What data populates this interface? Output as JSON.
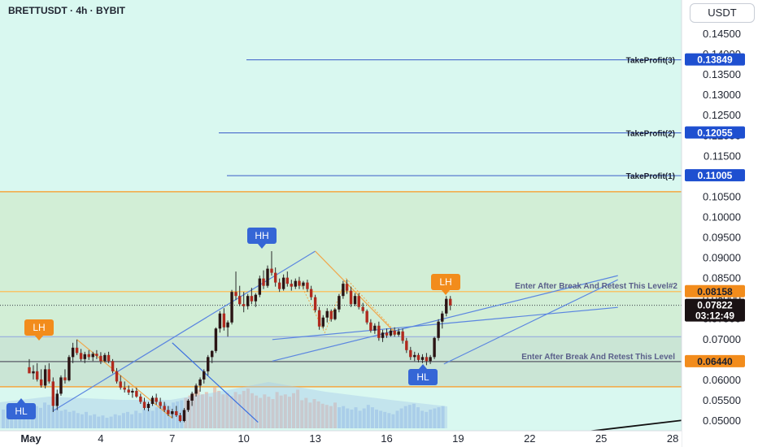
{
  "symbol": "BRETTUSDT · 4h · BYBIT",
  "currency": "USDT",
  "chart_data": {
    "type": "candlestick",
    "y_ticks": [
      "0.14500",
      "0.14000",
      "0.13500",
      "0.13000",
      "0.12500",
      "0.12000",
      "0.11500",
      "0.11000",
      "0.10500",
      "0.10000",
      "0.09500",
      "0.09000",
      "0.08500",
      "0.08000",
      "0.07500",
      "0.07000",
      "0.06500",
      "0.06000",
      "0.05500",
      "0.05000"
    ],
    "ylim": [
      0.0493,
      0.148
    ],
    "x_ticks": [
      "May",
      "4",
      "7",
      "10",
      "13",
      "16",
      "19",
      "22",
      "25",
      "28"
    ],
    "take_profits": [
      {
        "label": "TakeProfit(3)",
        "value": "0.13849",
        "price": 0.13849
      },
      {
        "label": "TakeProfit(2)",
        "value": "0.12055",
        "price": 0.12055
      },
      {
        "label": "TakeProfit(1)",
        "value": "0.11005",
        "price": 0.11005
      }
    ],
    "entry_levels": [
      {
        "label": "Enter After Break And Retest This Level#2",
        "value": "0.08158",
        "price": 0.08158
      },
      {
        "label": "Enter After Break And Retest This Level",
        "value": "0.06440",
        "price": 0.0644
      }
    ],
    "current_price": {
      "value": "0.07822",
      "countdown": "03:12:49",
      "price": 0.07822
    },
    "zone": {
      "top": 0.1061,
      "bottom": 0.0582
    },
    "support_band": {
      "top": 0.0705,
      "bottom": 0.0582
    },
    "pivots": [
      {
        "label": "HL",
        "x": 1,
        "price": 0.0523,
        "kind": "low"
      },
      {
        "label": "LH",
        "x": 6,
        "price": 0.0697,
        "kind": "high"
      },
      {
        "label": "HH",
        "x": 12,
        "price": 0.0915,
        "kind": "high"
      },
      {
        "label": "HL",
        "x": 17.4,
        "price": 0.0635,
        "kind": "low"
      },
      {
        "label": "LH",
        "x": 18.3,
        "price": 0.0805,
        "kind": "high"
      }
    ],
    "candles": [
      [
        0.0,
        0.063,
        0.065,
        0.062,
        0.0615
      ],
      [
        0.17,
        0.0615,
        0.0635,
        0.06,
        0.062
      ],
      [
        0.33,
        0.062,
        0.064,
        0.0595,
        0.06
      ],
      [
        0.5,
        0.06,
        0.0625,
        0.058,
        0.0585
      ],
      [
        0.67,
        0.0585,
        0.0635,
        0.0578,
        0.0625
      ],
      [
        0.83,
        0.0625,
        0.064,
        0.059,
        0.0595
      ],
      [
        1.0,
        0.0595,
        0.0605,
        0.052,
        0.0535
      ],
      [
        1.17,
        0.0535,
        0.0575,
        0.0525,
        0.0565
      ],
      [
        1.33,
        0.0565,
        0.061,
        0.056,
        0.0605
      ],
      [
        1.5,
        0.0605,
        0.0625,
        0.059,
        0.0598
      ],
      [
        1.67,
        0.0598,
        0.066,
        0.0595,
        0.0655
      ],
      [
        1.83,
        0.0655,
        0.069,
        0.064,
        0.0678
      ],
      [
        2.0,
        0.0678,
        0.0698,
        0.066,
        0.0665
      ],
      [
        2.17,
        0.0665,
        0.0675,
        0.0645,
        0.065
      ],
      [
        2.33,
        0.065,
        0.0668,
        0.064,
        0.0662
      ],
      [
        2.5,
        0.0662,
        0.0672,
        0.0648,
        0.0655
      ],
      [
        2.67,
        0.0655,
        0.0668,
        0.0645,
        0.0663
      ],
      [
        2.83,
        0.0663,
        0.0672,
        0.065,
        0.0658
      ],
      [
        3.0,
        0.0658,
        0.0667,
        0.0638,
        0.0645
      ],
      [
        3.17,
        0.0645,
        0.0665,
        0.0642,
        0.066
      ],
      [
        3.33,
        0.066,
        0.0668,
        0.064,
        0.0645
      ],
      [
        3.5,
        0.0645,
        0.065,
        0.0615,
        0.062
      ],
      [
        3.67,
        0.062,
        0.0628,
        0.059,
        0.0595
      ],
      [
        3.83,
        0.0595,
        0.061,
        0.0575,
        0.058
      ],
      [
        4.0,
        0.058,
        0.0595,
        0.0568,
        0.0575
      ],
      [
        4.17,
        0.0575,
        0.0585,
        0.0562,
        0.0568
      ],
      [
        4.33,
        0.0568,
        0.0578,
        0.0555,
        0.0572
      ],
      [
        4.5,
        0.0572,
        0.058,
        0.0555,
        0.0558
      ],
      [
        4.67,
        0.0558,
        0.0565,
        0.054,
        0.0545
      ],
      [
        4.83,
        0.0545,
        0.0555,
        0.0525,
        0.053
      ],
      [
        5.0,
        0.053,
        0.0545,
        0.0522,
        0.054
      ],
      [
        5.17,
        0.054,
        0.056,
        0.0535,
        0.0555
      ],
      [
        5.33,
        0.0555,
        0.0565,
        0.0538,
        0.0545
      ],
      [
        5.5,
        0.0545,
        0.0555,
        0.0528,
        0.0535
      ],
      [
        5.67,
        0.0535,
        0.0545,
        0.052,
        0.0525
      ],
      [
        5.83,
        0.0525,
        0.0535,
        0.051,
        0.0515
      ],
      [
        6.0,
        0.0515,
        0.0528,
        0.0505,
        0.0522
      ],
      [
        6.17,
        0.0522,
        0.0535,
        0.0508,
        0.0512
      ],
      [
        6.33,
        0.0512,
        0.0518,
        0.0495,
        0.0498
      ],
      [
        6.5,
        0.0498,
        0.053,
        0.0495,
        0.0525
      ],
      [
        6.67,
        0.0525,
        0.0552,
        0.052,
        0.0548
      ],
      [
        6.83,
        0.0548,
        0.057,
        0.0535,
        0.0565
      ],
      [
        7.0,
        0.0565,
        0.059,
        0.0558,
        0.0585
      ],
      [
        7.17,
        0.0585,
        0.0605,
        0.057,
        0.06
      ],
      [
        7.33,
        0.06,
        0.0625,
        0.059,
        0.062
      ],
      [
        7.5,
        0.062,
        0.066,
        0.061,
        0.0655
      ],
      [
        7.67,
        0.0655,
        0.0672,
        0.064,
        0.067
      ],
      [
        7.83,
        0.067,
        0.0728,
        0.0665,
        0.0725
      ],
      [
        8.0,
        0.0725,
        0.0768,
        0.0715,
        0.0762
      ],
      [
        8.17,
        0.0762,
        0.0775,
        0.072,
        0.0728
      ],
      [
        8.33,
        0.0728,
        0.0745,
        0.0705,
        0.074
      ],
      [
        8.5,
        0.074,
        0.082,
        0.0735,
        0.0815
      ],
      [
        8.67,
        0.0815,
        0.0865,
        0.0795,
        0.0805
      ],
      [
        8.83,
        0.0805,
        0.083,
        0.078,
        0.0785
      ],
      [
        9.0,
        0.0785,
        0.0815,
        0.0765,
        0.078
      ],
      [
        9.17,
        0.078,
        0.081,
        0.0772,
        0.0805
      ],
      [
        9.33,
        0.0805,
        0.0825,
        0.0785,
        0.0792
      ],
      [
        9.5,
        0.0792,
        0.0812,
        0.0778,
        0.0808
      ],
      [
        9.67,
        0.0808,
        0.0855,
        0.0802,
        0.0848
      ],
      [
        9.83,
        0.0848,
        0.0868,
        0.0822,
        0.083
      ],
      [
        10.0,
        0.083,
        0.088,
        0.0825,
        0.0872
      ],
      [
        10.17,
        0.0872,
        0.0915,
        0.0855,
        0.0862
      ],
      [
        10.33,
        0.0862,
        0.0875,
        0.0828,
        0.0838
      ],
      [
        10.5,
        0.0838,
        0.0848,
        0.0815,
        0.0822
      ],
      [
        10.67,
        0.0822,
        0.0858,
        0.0818,
        0.085
      ],
      [
        10.83,
        0.085,
        0.0865,
        0.0828,
        0.0835
      ],
      [
        11.0,
        0.0835,
        0.0845,
        0.0818,
        0.0828
      ],
      [
        11.17,
        0.0828,
        0.0848,
        0.0822,
        0.0842
      ],
      [
        11.33,
        0.0842,
        0.0852,
        0.0822,
        0.083
      ],
      [
        11.5,
        0.083,
        0.0842,
        0.0822,
        0.0838
      ],
      [
        11.67,
        0.0838,
        0.0845,
        0.0815,
        0.0822
      ],
      [
        11.83,
        0.0822,
        0.083,
        0.0795,
        0.0802
      ],
      [
        12.0,
        0.0802,
        0.0808,
        0.0765,
        0.077
      ],
      [
        12.17,
        0.077,
        0.0778,
        0.0722,
        0.073
      ],
      [
        12.33,
        0.073,
        0.0758,
        0.0725,
        0.0752
      ],
      [
        12.5,
        0.0752,
        0.0775,
        0.074,
        0.0768
      ],
      [
        12.67,
        0.0768,
        0.0772,
        0.0742,
        0.0748
      ],
      [
        12.83,
        0.0748,
        0.0775,
        0.0745,
        0.0772
      ],
      [
        13.0,
        0.0772,
        0.081,
        0.0765,
        0.0805
      ],
      [
        13.17,
        0.0805,
        0.0842,
        0.0798,
        0.0835
      ],
      [
        13.33,
        0.0835,
        0.0845,
        0.081,
        0.0818
      ],
      [
        13.5,
        0.0818,
        0.0828,
        0.0778,
        0.0785
      ],
      [
        13.67,
        0.0785,
        0.0812,
        0.078,
        0.0805
      ],
      [
        13.83,
        0.0805,
        0.0812,
        0.0772,
        0.0778
      ],
      [
        14.0,
        0.0778,
        0.0788,
        0.0762,
        0.0768
      ],
      [
        14.17,
        0.0768,
        0.0772,
        0.0735,
        0.074
      ],
      [
        14.33,
        0.074,
        0.0748,
        0.0715,
        0.072
      ],
      [
        14.5,
        0.072,
        0.0738,
        0.0712,
        0.0732
      ],
      [
        14.67,
        0.0732,
        0.0742,
        0.0695,
        0.0702
      ],
      [
        14.83,
        0.0702,
        0.0722,
        0.0692,
        0.0715
      ],
      [
        15.0,
        0.0715,
        0.0725,
        0.0702,
        0.0708
      ],
      [
        15.17,
        0.0708,
        0.0725,
        0.0705,
        0.072
      ],
      [
        15.33,
        0.072,
        0.0728,
        0.0705,
        0.071
      ],
      [
        15.5,
        0.071,
        0.0725,
        0.0705,
        0.0718
      ],
      [
        15.67,
        0.0718,
        0.0725,
        0.0688,
        0.0695
      ],
      [
        15.83,
        0.0695,
        0.0702,
        0.0665,
        0.0672
      ],
      [
        16.0,
        0.0672,
        0.068,
        0.0648,
        0.0655
      ],
      [
        16.17,
        0.0655,
        0.0668,
        0.0645,
        0.066
      ],
      [
        16.33,
        0.066,
        0.0665,
        0.0642,
        0.0648
      ],
      [
        16.5,
        0.0648,
        0.0662,
        0.064,
        0.0655
      ],
      [
        16.67,
        0.0655,
        0.0665,
        0.0635,
        0.0645
      ],
      [
        16.83,
        0.0645,
        0.066,
        0.0638,
        0.0655
      ],
      [
        17.0,
        0.0655,
        0.0705,
        0.065,
        0.0702
      ],
      [
        17.17,
        0.0702,
        0.0748,
        0.0695,
        0.0742
      ],
      [
        17.33,
        0.0742,
        0.0768,
        0.0725,
        0.0762
      ],
      [
        17.5,
        0.0762,
        0.0805,
        0.0755,
        0.0798
      ],
      [
        17.67,
        0.0798,
        0.0805,
        0.077,
        0.0782
      ]
    ],
    "volume": [
      32,
      38,
      30,
      28,
      34,
      36,
      40,
      42,
      38,
      35,
      44,
      40,
      36,
      34,
      30,
      32,
      28,
      30,
      26,
      24,
      28,
      22,
      24,
      20,
      22,
      18,
      20,
      24,
      22,
      26,
      28,
      24,
      30,
      26,
      32,
      34,
      30,
      36,
      40,
      42,
      38,
      44,
      46,
      48,
      52,
      56,
      60,
      66,
      58,
      62,
      54,
      70,
      64,
      58,
      60,
      55,
      62,
      58,
      64,
      68,
      60,
      56,
      52,
      58,
      54,
      50,
      62,
      56,
      58,
      54,
      60,
      66,
      48,
      52,
      44,
      50,
      46,
      42,
      40,
      38,
      44,
      36,
      38,
      34,
      32,
      36,
      30,
      34,
      40,
      36,
      32,
      30,
      28,
      26,
      24,
      30,
      34,
      38,
      40,
      42,
      36,
      30,
      28,
      32,
      34,
      36,
      38
    ],
    "trendlines": [
      {
        "x1": 1.0,
        "p1": 0.0523,
        "x2": 12.0,
        "p2": 0.0915
      },
      {
        "x1": 12.0,
        "p1": 0.0915,
        "x2": 15.3,
        "p2": 0.0718
      },
      {
        "x1": 10.2,
        "p1": 0.0645,
        "x2": 24.7,
        "p2": 0.0855
      },
      {
        "x1": 10.2,
        "p1": 0.0698,
        "x2": 24.7,
        "p2": 0.0777
      },
      {
        "x1": 17.4,
        "p1": 0.0638,
        "x2": 24.7,
        "p2": 0.0845
      },
      {
        "x1": 6.0,
        "p1": 0.069,
        "x2": 9.6,
        "p2": 0.0495
      },
      {
        "x1": 2.0,
        "p1": 0.0698,
        "x2": 6.0,
        "p2": 0.0505
      }
    ]
  }
}
